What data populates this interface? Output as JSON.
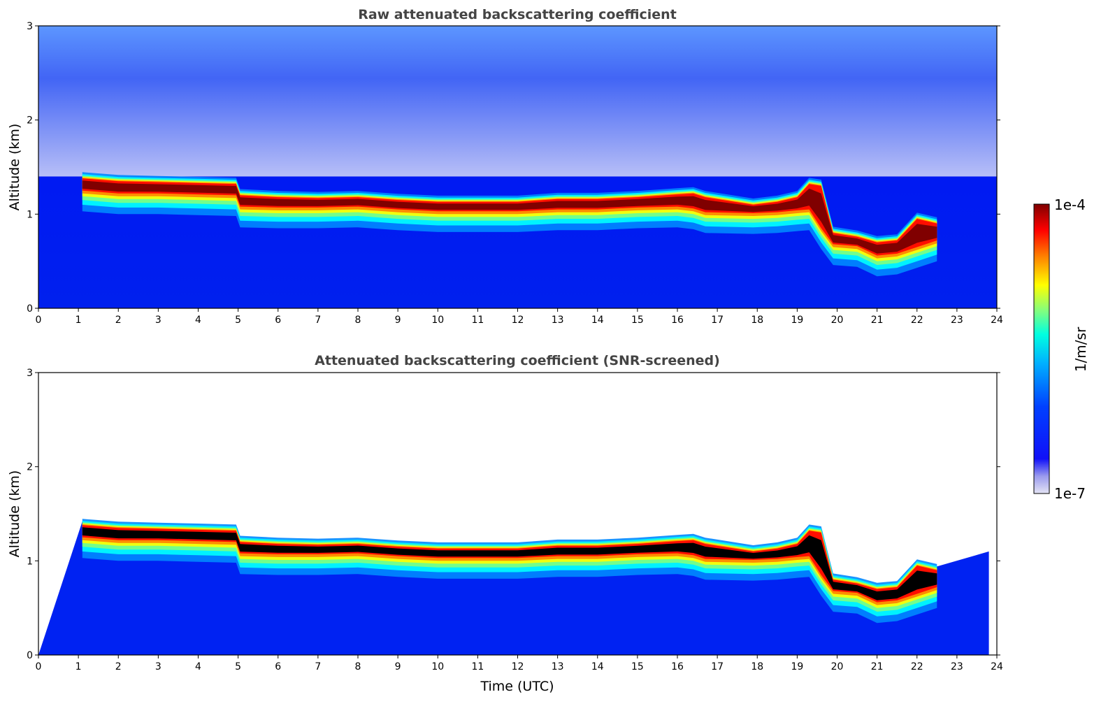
{
  "chart_data": [
    {
      "type": "heatmap",
      "title": "Raw attenuated backscattering coefficient",
      "xlabel": "",
      "ylabel": "Altitude (km)",
      "xlim": [
        0,
        24
      ],
      "ylim": [
        0,
        3
      ],
      "xticks": [
        "0",
        "1",
        "2",
        "3",
        "4",
        "5",
        "6",
        "7",
        "8",
        "9",
        "10",
        "11",
        "12",
        "13",
        "14",
        "15",
        "16",
        "17",
        "18",
        "19",
        "20",
        "21",
        "22",
        "23",
        "24"
      ],
      "yticks": [
        "0",
        "1",
        "2",
        "3"
      ],
      "cloud_layer": {
        "time_utc": [
          1.1,
          2,
          3,
          4,
          4.95,
          5.05,
          6,
          7,
          8,
          9,
          10,
          11,
          12,
          13,
          14,
          15,
          16,
          16.4,
          16.7,
          17.9,
          18.5,
          19,
          19.3,
          19.6,
          19.9,
          20.5,
          21,
          21.5,
          22,
          22.5
        ],
        "base_altitude_km": [
          1.25,
          1.22,
          1.22,
          1.21,
          1.2,
          1.08,
          1.07,
          1.07,
          1.08,
          1.05,
          1.03,
          1.03,
          1.03,
          1.05,
          1.05,
          1.07,
          1.08,
          1.06,
          1.02,
          1.01,
          1.02,
          1.04,
          1.05,
          0.85,
          0.68,
          0.66,
          0.56,
          0.58,
          0.65,
          0.72
        ],
        "top_altitude_km": [
          1.38,
          1.35,
          1.34,
          1.33,
          1.32,
          1.2,
          1.18,
          1.17,
          1.18,
          1.15,
          1.13,
          1.13,
          1.13,
          1.16,
          1.16,
          1.18,
          1.21,
          1.22,
          1.18,
          1.1,
          1.13,
          1.18,
          1.32,
          1.3,
          0.8,
          0.76,
          0.7,
          0.72,
          0.95,
          0.9
        ]
      },
      "noise_masked_region_km": [
        1.4,
        3.0
      ]
    },
    {
      "type": "heatmap",
      "title": "Attenuated backscattering coefficient (SNR-screened)",
      "xlabel": "Time (UTC)",
      "ylabel": "Altitude (km)",
      "xlim": [
        0,
        24
      ],
      "ylim": [
        0,
        3
      ],
      "xticks": [
        "0",
        "1",
        "2",
        "3",
        "4",
        "5",
        "6",
        "7",
        "8",
        "9",
        "10",
        "11",
        "12",
        "13",
        "14",
        "15",
        "16",
        "17",
        "18",
        "19",
        "20",
        "21",
        "22",
        "23",
        "24"
      ],
      "yticks": [
        "0",
        "1",
        "2",
        "3"
      ],
      "cloud_layer_same_as": "Raw attenuated backscattering coefficient",
      "saturated_color": "#000000"
    }
  ],
  "colorbar": {
    "label": "1/m/sr",
    "max_label": "1e-4",
    "min_label": "1e-7",
    "colors": [
      "#dcdcf0",
      "#9a9aee",
      "#0000ff",
      "#0088ff",
      "#00ffff",
      "#80ff80",
      "#ffff00",
      "#ff8000",
      "#ff0000",
      "#800000"
    ]
  }
}
